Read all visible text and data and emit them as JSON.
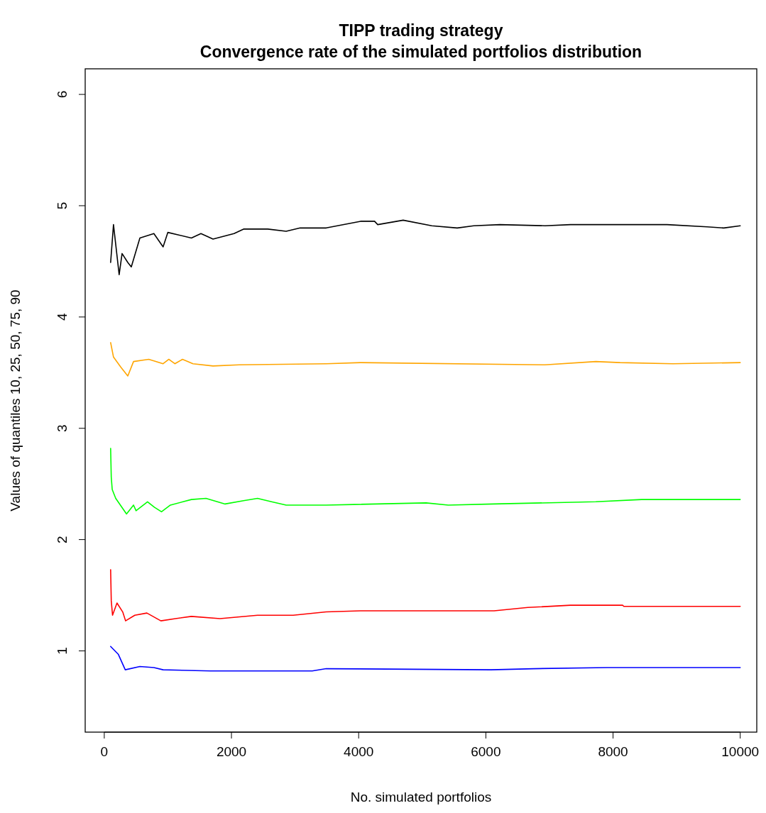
{
  "chart_data": {
    "type": "line",
    "title": "TIPP trading strategy\nConvergence rate of the simulated portfolios distribution",
    "xlabel": "No. simulated portfolios",
    "ylabel": "Values of quantiles 10, 25, 50, 75, 90",
    "xlim": [
      -300,
      10260
    ],
    "ylim": [
      0.27,
      6.23
    ],
    "xticks": [
      0,
      2000,
      4000,
      6000,
      8000,
      10000
    ],
    "yticks": [
      1,
      2,
      3,
      4,
      5,
      6
    ],
    "grid": false,
    "marker": "none",
    "line_style": "solid",
    "series": [
      {
        "color": "#0000ff",
        "x": [
          100,
          220,
          330,
          560,
          780,
          925,
          1670,
          3270,
          3490,
          6080,
          6750,
          7910,
          10000
        ],
        "values": [
          1.04,
          0.97,
          0.83,
          0.86,
          0.85,
          0.83,
          0.82,
          0.82,
          0.84,
          0.83,
          0.84,
          0.85,
          0.85
        ]
      },
      {
        "color": "#ff0000",
        "x": [
          100,
          110,
          130,
          200,
          290,
          335,
          480,
          670,
          890,
          1120,
          1370,
          1820,
          2410,
          2970,
          3490,
          4030,
          6130,
          6660,
          7330,
          8150,
          8170,
          10000
        ],
        "values": [
          1.73,
          1.45,
          1.32,
          1.43,
          1.35,
          1.27,
          1.32,
          1.34,
          1.27,
          1.29,
          1.31,
          1.29,
          1.32,
          1.32,
          1.35,
          1.36,
          1.36,
          1.39,
          1.41,
          1.41,
          1.4,
          1.4
        ]
      },
      {
        "color": "#00ff00",
        "x": [
          100,
          110,
          125,
          180,
          350,
          460,
          500,
          680,
          790,
          900,
          1040,
          1370,
          1600,
          1900,
          2190,
          2410,
          2630,
          2860,
          3490,
          5060,
          5410,
          6130,
          7730,
          8450,
          10000
        ],
        "values": [
          2.82,
          2.56,
          2.45,
          2.37,
          2.23,
          2.31,
          2.26,
          2.34,
          2.29,
          2.25,
          2.31,
          2.36,
          2.37,
          2.32,
          2.35,
          2.37,
          2.34,
          2.31,
          2.31,
          2.33,
          2.31,
          2.32,
          2.34,
          2.36,
          2.36
        ]
      },
      {
        "color": "#ffa500",
        "x": [
          100,
          145,
          260,
          370,
          460,
          700,
          925,
          1015,
          1110,
          1230,
          1395,
          1710,
          2120,
          3490,
          4030,
          6930,
          7730,
          8110,
          8940,
          10000
        ],
        "values": [
          3.77,
          3.64,
          3.55,
          3.47,
          3.6,
          3.62,
          3.58,
          3.62,
          3.58,
          3.62,
          3.58,
          3.56,
          3.57,
          3.58,
          3.59,
          3.57,
          3.6,
          3.59,
          3.58,
          3.59
        ]
      },
      {
        "color": "#000000",
        "x": [
          100,
          145,
          234,
          280,
          370,
          425,
          560,
          780,
          925,
          1000,
          1370,
          1520,
          1710,
          2040,
          2190,
          2570,
          2860,
          3080,
          3490,
          4030,
          4250,
          4300,
          4700,
          5150,
          5550,
          5810,
          6220,
          6930,
          7330,
          8850,
          9480,
          9740,
          10000
        ],
        "values": [
          4.49,
          4.83,
          4.38,
          4.57,
          4.49,
          4.45,
          4.71,
          4.75,
          4.63,
          4.76,
          4.71,
          4.75,
          4.7,
          4.75,
          4.79,
          4.79,
          4.77,
          4.8,
          4.8,
          4.86,
          4.86,
          4.83,
          4.87,
          4.82,
          4.8,
          4.82,
          4.83,
          4.82,
          4.83,
          4.83,
          4.81,
          4.8,
          4.82
        ]
      }
    ]
  }
}
